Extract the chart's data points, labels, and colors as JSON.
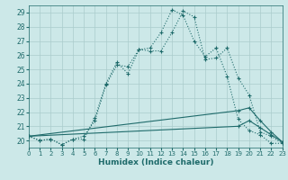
{
  "xlabel": "Humidex (Indice chaleur)",
  "bg_color": "#cce8e8",
  "grid_color": "#aacccc",
  "line_color": "#1f6b6b",
  "xlim": [
    0,
    23
  ],
  "ylim": [
    19.5,
    29.5
  ],
  "yticks": [
    20,
    21,
    22,
    23,
    24,
    25,
    26,
    27,
    28,
    29
  ],
  "xticks": [
    0,
    1,
    2,
    3,
    4,
    5,
    6,
    7,
    8,
    9,
    10,
    11,
    12,
    13,
    14,
    15,
    16,
    17,
    18,
    19,
    20,
    21,
    22,
    23
  ],
  "line1_x": [
    0,
    1,
    2,
    3,
    4,
    5,
    6,
    7,
    8,
    9,
    10,
    11,
    12,
    13,
    14,
    15,
    16,
    17,
    18,
    19,
    20,
    21,
    22,
    23
  ],
  "line1_y": [
    20.3,
    20.0,
    20.1,
    19.7,
    20.1,
    20.1,
    21.6,
    24.0,
    25.5,
    24.7,
    26.4,
    26.3,
    26.3,
    27.6,
    29.1,
    28.7,
    25.7,
    25.8,
    26.5,
    24.4,
    23.2,
    20.6,
    20.3,
    19.8
  ],
  "line2_x": [
    0,
    1,
    2,
    3,
    4,
    5,
    6,
    7,
    8,
    9,
    10,
    11,
    12,
    13,
    14,
    15,
    16,
    17,
    18,
    19,
    20,
    21,
    22,
    23
  ],
  "line2_y": [
    20.3,
    20.0,
    20.1,
    19.7,
    20.1,
    20.3,
    21.4,
    23.9,
    25.3,
    25.2,
    26.4,
    26.5,
    27.6,
    29.2,
    28.8,
    27.0,
    25.9,
    26.5,
    24.5,
    21.5,
    20.7,
    20.4,
    19.8,
    19.8
  ],
  "line3_x": [
    0,
    19,
    20,
    21,
    22,
    23
  ],
  "line3_y": [
    20.3,
    22.1,
    22.3,
    21.4,
    20.6,
    19.9
  ],
  "line4_x": [
    0,
    19,
    20,
    21,
    22,
    23
  ],
  "line4_y": [
    20.3,
    21.0,
    21.4,
    20.9,
    20.4,
    19.9
  ]
}
